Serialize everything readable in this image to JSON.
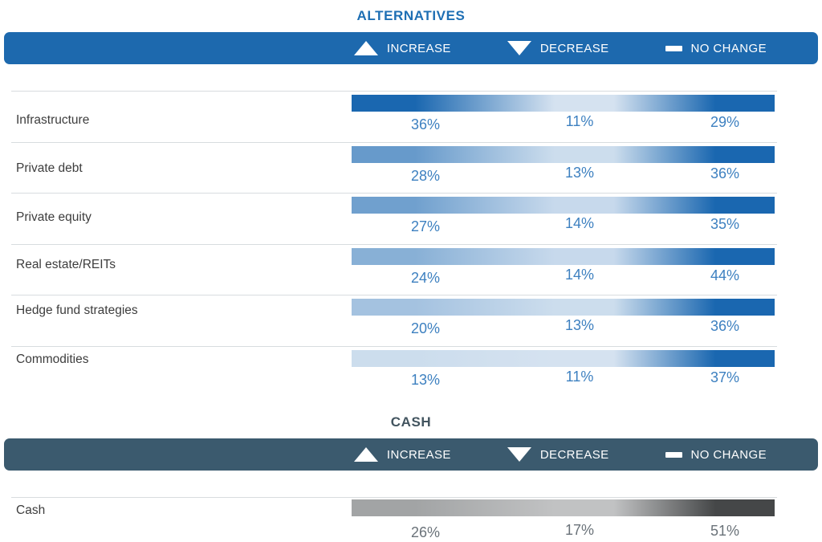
{
  "legend": [
    {
      "icon": "triangle-up-icon",
      "label": "INCREASE"
    },
    {
      "icon": "triangle-down-icon",
      "label": "DECREASE"
    },
    {
      "icon": "dash-icon",
      "label": "NO CHANGE"
    }
  ],
  "sections": [
    {
      "title": "ALTERNATIVES",
      "colors": {
        "header_bg": "#1d69ae",
        "title_text": "#1e6fb4",
        "value_text": "#3d80c0",
        "label_text": "#3d3d3d",
        "bar_strong": "#1a67b0",
        "bar_faint": "#eef3f9",
        "divider": "#d8dcdf"
      }
    },
    {
      "title": "CASH",
      "colors": {
        "header_bg": "#3b5a6e",
        "title_text": "#42545f",
        "value_text": "#6a7279",
        "label_text": "#3d3d3d",
        "bar_strong": "#454748",
        "bar_faint": "#f2f3f4",
        "divider": "#d8dcdf"
      }
    }
  ],
  "chart_data": {
    "type": "heatmap",
    "legend_entries": [
      "INCREASE",
      "DECREASE",
      "NO CHANGE"
    ],
    "value_unit": "%",
    "groups": [
      {
        "title": "ALTERNATIVES",
        "categories": [
          "Infrastructure",
          "Private debt",
          "Private equity",
          "Real estate/REITs",
          "Hedge fund strategies",
          "Commodities"
        ],
        "series": [
          {
            "name": "Increase",
            "values": [
              36,
              28,
              27,
              24,
              20,
              13
            ]
          },
          {
            "name": "Decrease",
            "values": [
              11,
              13,
              14,
              14,
              13,
              11
            ]
          },
          {
            "name": "No change",
            "values": [
              29,
              36,
              35,
              44,
              36,
              37
            ]
          }
        ]
      },
      {
        "title": "CASH",
        "categories": [
          "Cash"
        ],
        "series": [
          {
            "name": "Increase",
            "values": [
              26
            ]
          },
          {
            "name": "Decrease",
            "values": [
              17
            ]
          },
          {
            "name": "No change",
            "values": [
              51
            ]
          }
        ]
      }
    ]
  }
}
